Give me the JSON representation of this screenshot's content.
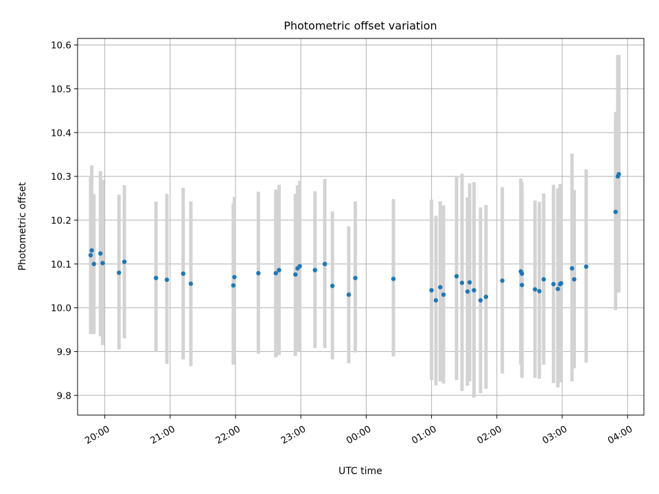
{
  "chart_data": {
    "type": "scatter",
    "title": "Photometric offset variation",
    "xlabel": "UTC time",
    "ylabel": "Photometric offset",
    "xlim": [
      "19:35",
      "04:15"
    ],
    "ylim": [
      9.755,
      10.615
    ],
    "grid": true,
    "x_ticks": [
      "20:00",
      "21:00",
      "22:00",
      "23:00",
      "00:00",
      "01:00",
      "02:00",
      "03:00",
      "04:00"
    ],
    "y_ticks": [
      "9.8",
      "9.9",
      "10.0",
      "10.1",
      "10.2",
      "10.3",
      "10.4",
      "10.5",
      "10.6"
    ],
    "colors": {
      "points": "#1f77b4",
      "error_bars": "#d3d3d3",
      "grid": "#b0b0b0"
    },
    "series": [
      {
        "x": [
          "19:47",
          "19:48",
          "19:50",
          "19:56",
          "19:58",
          "20:13",
          "20:18",
          "20:47",
          "20:57",
          "21:12",
          "21:19",
          "21:58",
          "21:59",
          "22:21",
          "22:37",
          "22:40",
          "22:55",
          "22:57",
          "22:59",
          "23:13",
          "23:22",
          "23:29",
          "23:44",
          "23:50",
          "00:25",
          "01:00",
          "01:04",
          "01:08",
          "01:11",
          "01:23",
          "01:28",
          "01:33",
          "01:35",
          "01:39",
          "01:45",
          "01:50",
          "02:05",
          "02:22",
          "02:23",
          "02:23",
          "02:35",
          "02:39",
          "02:43",
          "02:52",
          "02:56",
          "02:58",
          "02:59",
          "03:09",
          "03:11",
          "03:22",
          "03:49",
          "03:51",
          "03:52"
        ],
        "y": [
          10.12,
          10.131,
          10.1,
          10.124,
          10.102,
          10.08,
          10.105,
          10.068,
          10.064,
          10.078,
          10.055,
          10.051,
          10.07,
          10.079,
          10.079,
          10.086,
          10.076,
          10.09,
          10.095,
          10.086,
          10.1,
          10.05,
          10.03,
          10.068,
          10.066,
          10.04,
          10.017,
          10.047,
          10.03,
          10.072,
          10.057,
          10.037,
          10.058,
          10.04,
          10.017,
          10.025,
          10.062,
          10.083,
          10.078,
          10.052,
          10.042,
          10.038,
          10.065,
          10.054,
          10.043,
          10.054,
          10.056,
          10.09,
          10.065,
          10.094,
          10.219,
          10.3,
          10.305
        ],
        "err_low": [
          9.94,
          9.94,
          9.94,
          9.935,
          9.915,
          9.905,
          9.93,
          9.9,
          9.872,
          9.882,
          9.867,
          9.87,
          9.89,
          9.895,
          9.887,
          9.892,
          9.89,
          9.9,
          9.9,
          9.908,
          9.908,
          9.882,
          9.873,
          9.898,
          9.889,
          9.835,
          9.823,
          9.832,
          9.827,
          9.835,
          9.81,
          9.822,
          9.832,
          9.795,
          9.805,
          9.815,
          9.85,
          9.87,
          9.84,
          9.845,
          9.84,
          9.838,
          9.87,
          9.828,
          9.818,
          9.83,
          9.832,
          9.832,
          9.862,
          9.875,
          9.995,
          10.035,
          10.035
        ],
        "err_high": [
          10.3,
          10.325,
          10.26,
          10.312,
          10.292,
          10.258,
          10.28,
          10.242,
          10.26,
          10.274,
          10.243,
          10.238,
          10.253,
          10.265,
          10.27,
          10.281,
          10.26,
          10.28,
          10.29,
          10.266,
          10.294,
          10.22,
          10.186,
          10.243,
          10.248,
          10.247,
          10.21,
          10.243,
          10.234,
          10.3,
          10.306,
          10.252,
          10.284,
          10.287,
          10.229,
          10.235,
          10.276,
          10.295,
          10.287,
          10.265,
          10.245,
          10.242,
          10.261,
          10.281,
          10.273,
          10.283,
          10.283,
          10.352,
          10.269,
          10.316,
          10.447,
          10.577,
          10.577
        ]
      }
    ]
  }
}
